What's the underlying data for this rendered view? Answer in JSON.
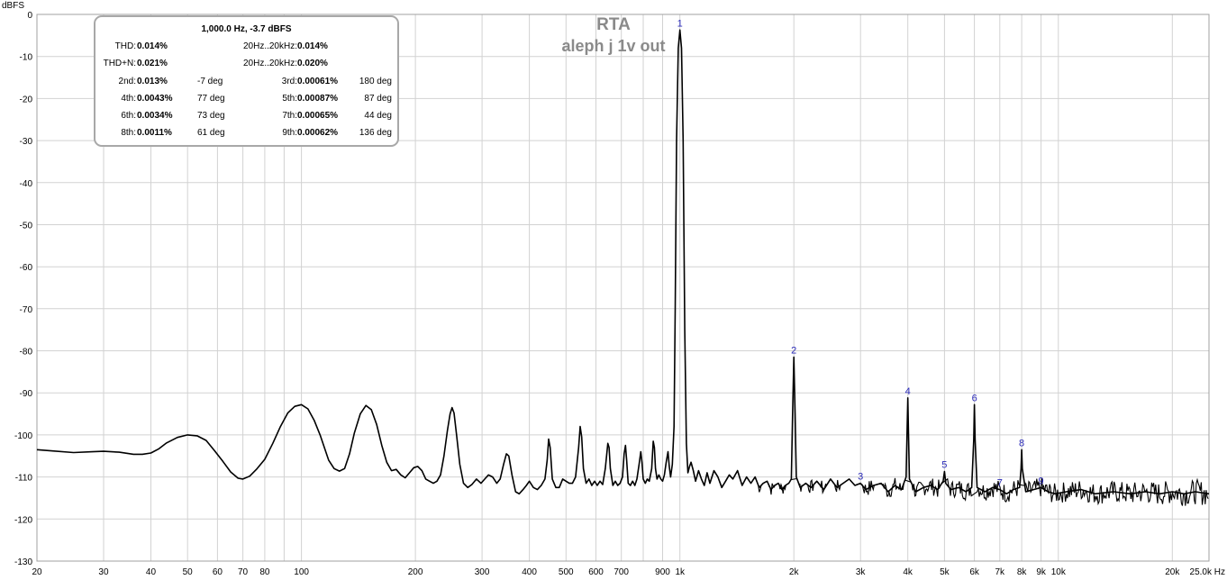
{
  "chart_data": {
    "type": "line",
    "title": "RTA",
    "subtitle": "aleph j 1v out",
    "ylabel": "dBFS",
    "xunit": "Hz",
    "xscale": "log",
    "xlim": [
      20,
      25000
    ],
    "ylim": [
      -130,
      0
    ],
    "grid": true,
    "x_ticks": [
      {
        "v": 20,
        "label": "20"
      },
      {
        "v": 30,
        "label": "30"
      },
      {
        "v": 40,
        "label": "40"
      },
      {
        "v": 50,
        "label": "50"
      },
      {
        "v": 60,
        "label": "60"
      },
      {
        "v": 70,
        "label": "70"
      },
      {
        "v": 80,
        "label": "80"
      },
      {
        "v": 100,
        "label": "100"
      },
      {
        "v": 200,
        "label": "200"
      },
      {
        "v": 300,
        "label": "300"
      },
      {
        "v": 400,
        "label": "400"
      },
      {
        "v": 500,
        "label": "500"
      },
      {
        "v": 600,
        "label": "600"
      },
      {
        "v": 700,
        "label": "700"
      },
      {
        "v": 900,
        "label": "900"
      },
      {
        "v": 1000,
        "label": "1k"
      },
      {
        "v": 2000,
        "label": "2k"
      },
      {
        "v": 3000,
        "label": "3k"
      },
      {
        "v": 4000,
        "label": "4k"
      },
      {
        "v": 5000,
        "label": "5k"
      },
      {
        "v": 6000,
        "label": "6k"
      },
      {
        "v": 7000,
        "label": "7k"
      },
      {
        "v": 8000,
        "label": "8k"
      },
      {
        "v": 9000,
        "label": "9k"
      },
      {
        "v": 10000,
        "label": "10k"
      },
      {
        "v": 20000,
        "label": "20k"
      },
      {
        "v": 25000,
        "label": "25.0k Hz"
      }
    ],
    "y_ticks": [
      0,
      -10,
      -20,
      -30,
      -40,
      -50,
      -60,
      -70,
      -80,
      -90,
      -100,
      -110,
      -120,
      -130
    ],
    "series": [
      {
        "color": "#000000",
        "points": [
          [
            20,
            -103.5
          ],
          [
            22,
            -103.8
          ],
          [
            25,
            -104.2
          ],
          [
            28,
            -104.0
          ],
          [
            30,
            -103.9
          ],
          [
            33,
            -104.1
          ],
          [
            36,
            -104.6
          ],
          [
            38,
            -104.6
          ],
          [
            40,
            -104.3
          ],
          [
            42,
            -103.3
          ],
          [
            44,
            -101.9
          ],
          [
            47,
            -100.6
          ],
          [
            50,
            -100.0
          ],
          [
            53,
            -100.2
          ],
          [
            56,
            -101.3
          ],
          [
            59,
            -103.8
          ],
          [
            62,
            -106.3
          ],
          [
            65,
            -108.8
          ],
          [
            68,
            -110.3
          ],
          [
            70,
            -110.5
          ],
          [
            73,
            -109.8
          ],
          [
            76,
            -108.2
          ],
          [
            80,
            -105.8
          ],
          [
            84,
            -102.0
          ],
          [
            88,
            -98.0
          ],
          [
            92,
            -94.8
          ],
          [
            96,
            -93.2
          ],
          [
            100,
            -92.8
          ],
          [
            104,
            -93.8
          ],
          [
            108,
            -96.5
          ],
          [
            112,
            -100.0
          ],
          [
            118,
            -106.0
          ],
          [
            122,
            -108.0
          ],
          [
            126,
            -108.6
          ],
          [
            130,
            -108.0
          ],
          [
            134,
            -104.5
          ],
          [
            138,
            -99.5
          ],
          [
            143,
            -95.0
          ],
          [
            148,
            -93.0
          ],
          [
            153,
            -94.0
          ],
          [
            158,
            -97.5
          ],
          [
            163,
            -102.5
          ],
          [
            168,
            -106.5
          ],
          [
            173,
            -108.5
          ],
          [
            178,
            -108.2
          ],
          [
            183,
            -109.5
          ],
          [
            188,
            -110.2
          ],
          [
            193,
            -109.0
          ],
          [
            198,
            -107.8
          ],
          [
            203,
            -107.5
          ],
          [
            208,
            -108.5
          ],
          [
            213,
            -110.5
          ],
          [
            218,
            -111.0
          ],
          [
            223,
            -111.5
          ],
          [
            228,
            -111.0
          ],
          [
            233,
            -109.5
          ],
          [
            238,
            -105.0
          ],
          [
            243,
            -99.0
          ],
          [
            247,
            -95.0
          ],
          [
            250,
            -93.5
          ],
          [
            253,
            -94.8
          ],
          [
            257,
            -100.0
          ],
          [
            262,
            -107.0
          ],
          [
            268,
            -111.5
          ],
          [
            275,
            -112.5
          ],
          [
            282,
            -111.8
          ],
          [
            290,
            -110.5
          ],
          [
            298,
            -111.5
          ],
          [
            305,
            -110.5
          ],
          [
            312,
            -109.5
          ],
          [
            320,
            -110.0
          ],
          [
            328,
            -111.5
          ],
          [
            335,
            -110.5
          ],
          [
            342,
            -107.0
          ],
          [
            348,
            -104.5
          ],
          [
            353,
            -105.0
          ],
          [
            360,
            -109.5
          ],
          [
            368,
            -113.5
          ],
          [
            376,
            -114.0
          ],
          [
            385,
            -113.0
          ],
          [
            393,
            -112.0
          ],
          [
            400,
            -111.0
          ],
          [
            410,
            -112.5
          ],
          [
            420,
            -113.0
          ],
          [
            430,
            -112.0
          ],
          [
            440,
            -110.5
          ],
          [
            446,
            -106.0
          ],
          [
            450,
            -101.0
          ],
          [
            454,
            -103.0
          ],
          [
            460,
            -110.5
          ],
          [
            470,
            -112.5
          ],
          [
            480,
            -112.5
          ],
          [
            490,
            -110.5
          ],
          [
            500,
            -111.0
          ],
          [
            510,
            -111.5
          ],
          [
            520,
            -111.5
          ],
          [
            530,
            -110.0
          ],
          [
            540,
            -103.0
          ],
          [
            545,
            -98.0
          ],
          [
            550,
            -100.5
          ],
          [
            556,
            -108.0
          ],
          [
            565,
            -111.5
          ],
          [
            575,
            -110.5
          ],
          [
            585,
            -112.0
          ],
          [
            595,
            -111.0
          ],
          [
            605,
            -112.0
          ],
          [
            615,
            -111.0
          ],
          [
            625,
            -111.8
          ],
          [
            635,
            -108.0
          ],
          [
            645,
            -102.0
          ],
          [
            650,
            -103.0
          ],
          [
            655,
            -108.0
          ],
          [
            665,
            -112.0
          ],
          [
            675,
            -111.0
          ],
          [
            685,
            -112.0
          ],
          [
            695,
            -111.5
          ],
          [
            705,
            -110.0
          ],
          [
            712,
            -104.5
          ],
          [
            718,
            -102.5
          ],
          [
            723,
            -106.0
          ],
          [
            730,
            -111.5
          ],
          [
            740,
            -112.0
          ],
          [
            750,
            -111.0
          ],
          [
            760,
            -112.0
          ],
          [
            770,
            -110.5
          ],
          [
            780,
            -107.0
          ],
          [
            788,
            -104.0
          ],
          [
            794,
            -106.5
          ],
          [
            800,
            -110.5
          ],
          [
            810,
            -111.5
          ],
          [
            820,
            -110.5
          ],
          [
            830,
            -111.0
          ],
          [
            842,
            -108.0
          ],
          [
            850,
            -101.5
          ],
          [
            856,
            -103.0
          ],
          [
            862,
            -108.0
          ],
          [
            870,
            -110.5
          ],
          [
            880,
            -109.5
          ],
          [
            890,
            -110.5
          ],
          [
            900,
            -111.0
          ],
          [
            910,
            -109.5
          ],
          [
            920,
            -106.5
          ],
          [
            930,
            -104.0
          ],
          [
            937,
            -107.5
          ],
          [
            945,
            -110.0
          ],
          [
            955,
            -107.0
          ],
          [
            965,
            -98.0
          ],
          [
            972,
            -70.0
          ],
          [
            980,
            -30.0
          ],
          [
            990,
            -8.0
          ],
          [
            1000,
            -3.7
          ],
          [
            1010,
            -8.0
          ],
          [
            1020,
            -30.0
          ],
          [
            1030,
            -75.0
          ],
          [
            1040,
            -102.0
          ],
          [
            1050,
            -109.0
          ],
          [
            1060,
            -107.5
          ],
          [
            1070,
            -106.5
          ],
          [
            1085,
            -108.5
          ],
          [
            1100,
            -111.0
          ],
          [
            1120,
            -108.5
          ],
          [
            1140,
            -110.5
          ],
          [
            1160,
            -112.0
          ],
          [
            1180,
            -109.0
          ],
          [
            1200,
            -111.5
          ],
          [
            1230,
            -108.5
          ],
          [
            1260,
            -110.0
          ],
          [
            1290,
            -112.5
          ],
          [
            1320,
            -111.0
          ],
          [
            1350,
            -109.5
          ],
          [
            1380,
            -110.5
          ],
          [
            1420,
            -108.5
          ],
          [
            1460,
            -112.0
          ],
          [
            1500,
            -110.0
          ],
          [
            1540,
            -111.5
          ],
          [
            1580,
            -110.0
          ],
          [
            1620,
            -112.5
          ],
          [
            1660,
            -111.5
          ],
          [
            1700,
            -111.0
          ],
          [
            1740,
            -113.0
          ],
          [
            1780,
            -112.0
          ],
          [
            1820,
            -111.5
          ],
          [
            1860,
            -113.0
          ],
          [
            1900,
            -112.0
          ],
          [
            1940,
            -111.5
          ],
          [
            1970,
            -110.5
          ],
          [
            1985,
            -95.0
          ],
          [
            2000,
            -81.5
          ],
          [
            2015,
            -95.0
          ],
          [
            2030,
            -110.0
          ],
          [
            2080,
            -112.5
          ],
          [
            2150,
            -111.5
          ],
          [
            2220,
            -112.5
          ],
          [
            2300,
            -111.0
          ],
          [
            2400,
            -113.0
          ],
          [
            2500,
            -110.5
          ],
          [
            2600,
            -112.5
          ],
          [
            2700,
            -111.5
          ],
          [
            2800,
            -110.5
          ],
          [
            2900,
            -112.0
          ],
          [
            3000,
            -111.5
          ],
          [
            3100,
            -113.0
          ],
          [
            3250,
            -112.0
          ],
          [
            3400,
            -111.5
          ],
          [
            3550,
            -113.5
          ],
          [
            3700,
            -112.0
          ],
          [
            3850,
            -113.0
          ],
          [
            3960,
            -110.0
          ],
          [
            3985,
            -98.0
          ],
          [
            4000,
            -91.2
          ],
          [
            4015,
            -98.0
          ],
          [
            4040,
            -110.5
          ],
          [
            4200,
            -113.5
          ],
          [
            4400,
            -112.5
          ],
          [
            4600,
            -112.0
          ],
          [
            4800,
            -113.0
          ],
          [
            4960,
            -111.0
          ],
          [
            5000,
            -108.7
          ],
          [
            5040,
            -111.5
          ],
          [
            5200,
            -113.0
          ],
          [
            5450,
            -112.5
          ],
          [
            5700,
            -113.5
          ],
          [
            5900,
            -112.5
          ],
          [
            5975,
            -101.0
          ],
          [
            6000,
            -92.8
          ],
          [
            6025,
            -101.0
          ],
          [
            6100,
            -112.5
          ],
          [
            6400,
            -113.5
          ],
          [
            6700,
            -112.5
          ],
          [
            7000,
            -113.0
          ],
          [
            7300,
            -114.0
          ],
          [
            7600,
            -113.0
          ],
          [
            7900,
            -112.5
          ],
          [
            7970,
            -108.0
          ],
          [
            8000,
            -103.5
          ],
          [
            8030,
            -108.0
          ],
          [
            8200,
            -113.5
          ],
          [
            8600,
            -113.0
          ],
          [
            9000,
            -112.5
          ],
          [
            9400,
            -113.5
          ],
          [
            9800,
            -114.0
          ],
          [
            10500,
            -113.5
          ],
          [
            11500,
            -113.0
          ],
          [
            12500,
            -114.0
          ],
          [
            14000,
            -113.5
          ],
          [
            15500,
            -114.0
          ],
          [
            17000,
            -113.5
          ],
          [
            18500,
            -114.0
          ],
          [
            20000,
            -113.5
          ],
          [
            21500,
            -114.0
          ],
          [
            23000,
            -113.5
          ],
          [
            25000,
            -114.0
          ]
        ]
      }
    ],
    "noise": {
      "from_hz": 1050,
      "to_hz": 25000,
      "spread_db": 2.0
    },
    "harmonic_labels": [
      {
        "label": "1",
        "x": 1000,
        "y": -3.7
      },
      {
        "label": "2",
        "x": 2000,
        "y": -81.5
      },
      {
        "label": "3",
        "x": 3000,
        "y": -111.5
      },
      {
        "label": "4",
        "x": 4000,
        "y": -91.2
      },
      {
        "label": "5",
        "x": 5000,
        "y": -108.7
      },
      {
        "label": "6",
        "x": 6000,
        "y": -92.8
      },
      {
        "label": "7",
        "x": 7000,
        "y": -113.0
      },
      {
        "label": "8",
        "x": 8000,
        "y": -103.5
      },
      {
        "label": "9",
        "x": 9000,
        "y": -112.5
      }
    ]
  },
  "info": {
    "header": "1,000.0 Hz, -3.7 dBFS",
    "thd_label": "THD:",
    "thd_value": "0.014%",
    "thdn_label": "THD+N:",
    "thdn_value": "0.021%",
    "thd_band_label": "20Hz..20kHz:",
    "thd_band_value": "0.014%",
    "thdn_band_label": "20Hz..20kHz:",
    "thdn_band_value": "0.020%",
    "harmonics": [
      {
        "name": "2nd:",
        "value": "0.013%",
        "phase": "-7 deg"
      },
      {
        "name": "3rd:",
        "value": "0.00061%",
        "phase": "180 deg"
      },
      {
        "name": "4th:",
        "value": "0.0043%",
        "phase": "77 deg"
      },
      {
        "name": "5th:",
        "value": "0.00087%",
        "phase": "87 deg"
      },
      {
        "name": "6th:",
        "value": "0.0034%",
        "phase": "73 deg"
      },
      {
        "name": "7th:",
        "value": "0.00065%",
        "phase": "44 deg"
      },
      {
        "name": "8th:",
        "value": "0.0011%",
        "phase": "61 deg"
      },
      {
        "name": "9th:",
        "value": "0.00062%",
        "phase": "136 deg"
      }
    ]
  }
}
